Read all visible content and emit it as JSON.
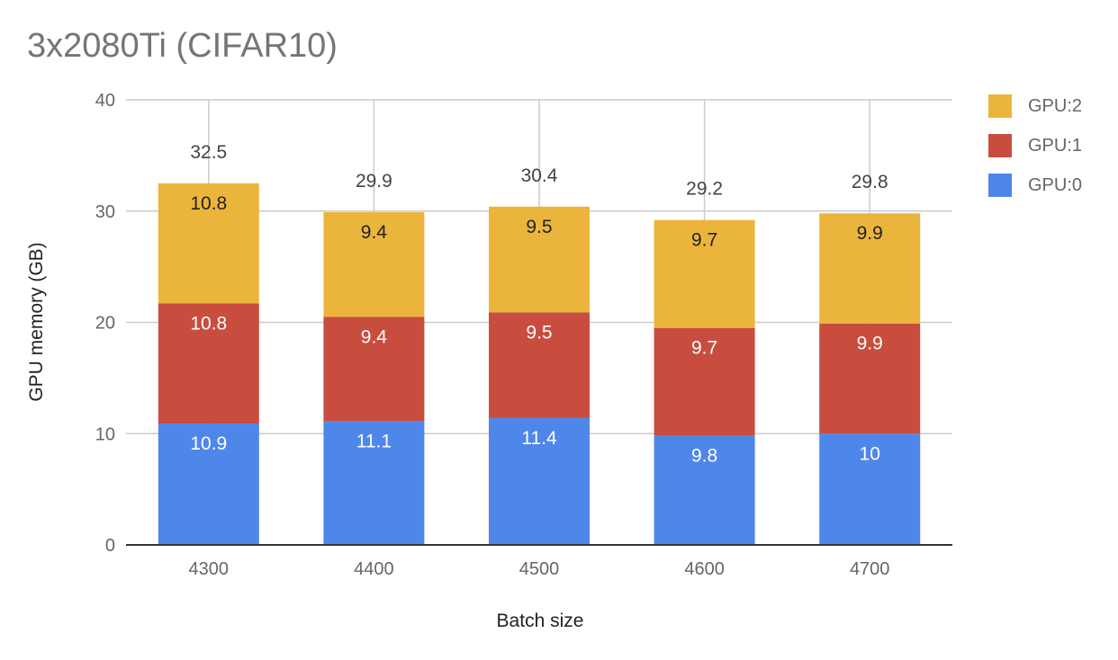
{
  "chart_data": {
    "type": "bar",
    "stacked": true,
    "title": "3x2080Ti (CIFAR10)",
    "xlabel": "Batch size",
    "ylabel": "GPU memory (GB)",
    "categories": [
      "4300",
      "4400",
      "4500",
      "4600",
      "4700"
    ],
    "series": [
      {
        "name": "GPU:0",
        "color": "#4f86ea",
        "values": [
          10.9,
          11.1,
          11.4,
          9.8,
          10
        ],
        "labels": [
          "10.9",
          "11.1",
          "11.4",
          "9.8",
          "10"
        ]
      },
      {
        "name": "GPU:1",
        "color": "#c84d3f",
        "values": [
          10.8,
          9.4,
          9.5,
          9.7,
          9.9
        ],
        "labels": [
          "10.8",
          "9.4",
          "9.5",
          "9.7",
          "9.9"
        ]
      },
      {
        "name": "GPU:2",
        "color": "#ebb53c",
        "values": [
          10.8,
          9.4,
          9.5,
          9.7,
          9.9
        ],
        "labels": [
          "10.8",
          "9.4",
          "9.5",
          "9.7",
          "9.9"
        ]
      }
    ],
    "totals": [
      "32.5",
      "29.9",
      "30.4",
      "29.2",
      "29.8"
    ],
    "ylim": [
      0,
      40
    ],
    "yticks": [
      "0",
      "10",
      "20",
      "30",
      "40"
    ],
    "grid": true,
    "legend_position": "right",
    "legend_order": [
      "GPU:2",
      "GPU:1",
      "GPU:0"
    ]
  }
}
